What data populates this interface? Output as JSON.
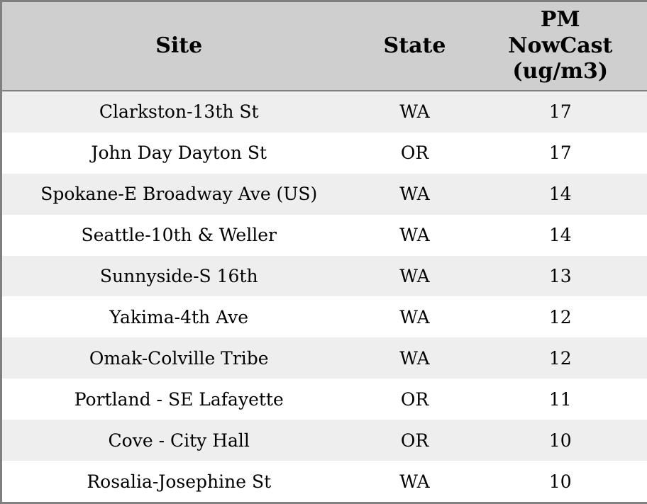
{
  "chart_data": {
    "type": "table",
    "columns": [
      "Site",
      "State",
      "PM NowCast (ug/m3)"
    ],
    "rows": [
      [
        "Clarkston-13th St",
        "WA",
        17
      ],
      [
        "John Day Dayton St",
        "OR",
        17
      ],
      [
        "Spokane-E Broadway Ave (US)",
        "WA",
        14
      ],
      [
        "Seattle-10th & Weller",
        "WA",
        14
      ],
      [
        "Sunnyside-S 16th",
        "WA",
        13
      ],
      [
        "Yakima-4th Ave",
        "WA",
        12
      ],
      [
        "Omak-Colville Tribe",
        "WA",
        12
      ],
      [
        "Portland - SE Lafayette",
        "OR",
        11
      ],
      [
        "Cove - City Hall",
        "OR",
        10
      ],
      [
        "Rosalia-Josephine St",
        "WA",
        10
      ]
    ]
  },
  "display": {
    "pm_header_wrapped": "PM\nNowCast\n(ug/m3)"
  },
  "colors": {
    "header_bg": "#cfcfcf",
    "row_alt_bg": "#eeeeee",
    "row_bg": "#ffffff",
    "border": "#808080",
    "text": "#000000"
  }
}
